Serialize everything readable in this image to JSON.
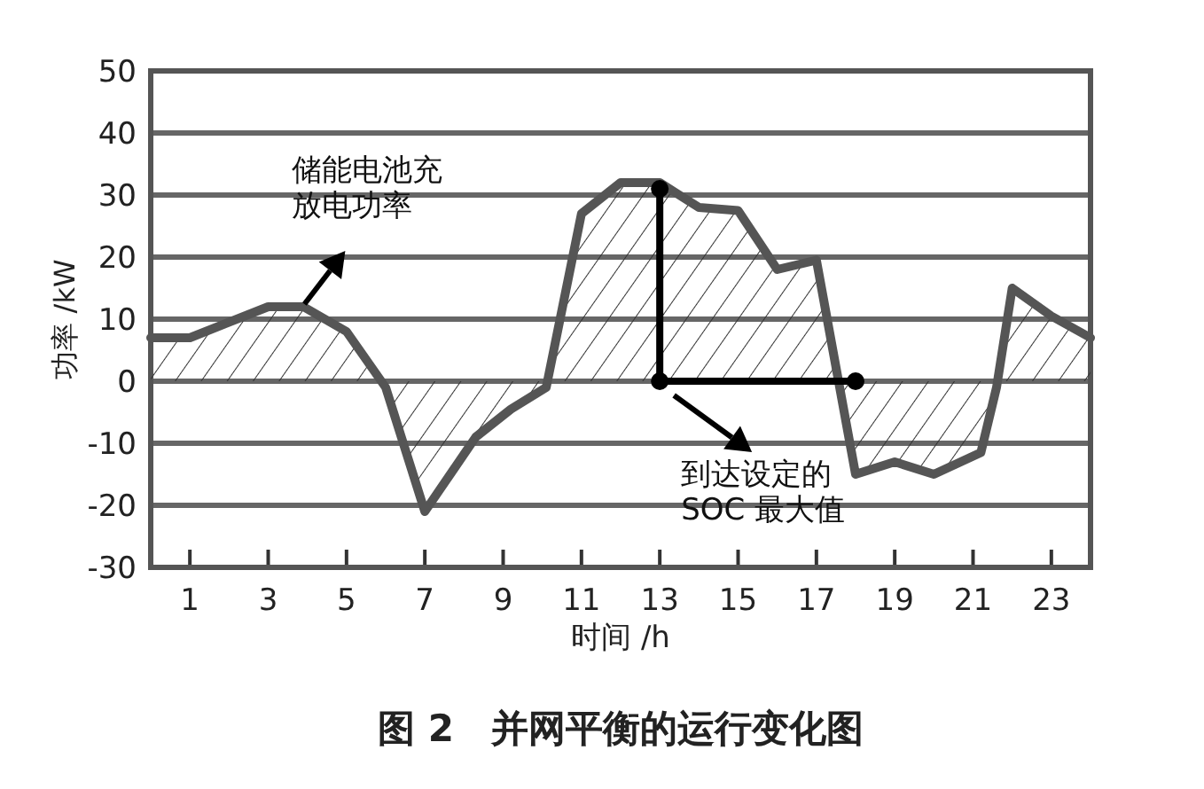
{
  "chart_data": {
    "type": "area",
    "title": "图 2　并网平衡的运行变化图",
    "xlabel": "时间 /h",
    "ylabel": "功率 /kW",
    "xlim": [
      0,
      24
    ],
    "xticks": [
      1,
      3,
      5,
      7,
      9,
      11,
      13,
      15,
      17,
      19,
      21,
      23
    ],
    "ylim": [
      -30,
      50
    ],
    "yticks": [
      -30,
      -20,
      -10,
      0,
      10,
      20,
      30,
      40,
      50
    ],
    "grid": "y",
    "series": [
      {
        "color": "#555555",
        "x": [
          0,
          1,
          3,
          3.9,
          5,
          6,
          7,
          8.3,
          9.2,
          10.1,
          11,
          12,
          13,
          14,
          15,
          16,
          17,
          18,
          19,
          20,
          21.2,
          21.6,
          22,
          23,
          24
        ],
        "values": [
          7,
          7,
          12,
          12,
          8,
          -1,
          -21,
          -9,
          -4.5,
          -1,
          27,
          32,
          32,
          28,
          27.5,
          18,
          19.5,
          -15,
          -13,
          -15,
          -11.5,
          -1,
          15,
          10.5,
          7
        ]
      },
      {
        "type": "line",
        "color": "#000000",
        "marker": "circle",
        "x": [
          13,
          13,
          18
        ],
        "values": [
          31,
          0,
          0
        ]
      }
    ],
    "annotations": [
      {
        "text": "储能电池充放电功率",
        "x": 3.7,
        "y": 11
      },
      {
        "text": "到达设定的SOC 最大值",
        "x": 13,
        "y": 0
      }
    ]
  }
}
